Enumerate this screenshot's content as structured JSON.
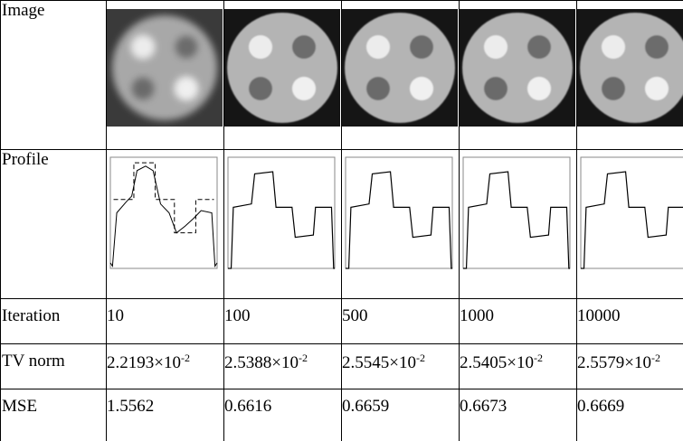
{
  "table": {
    "rows": [
      {
        "header": "Image"
      },
      {
        "header": "Profile"
      },
      {
        "header": "Iteration",
        "cells": [
          "10",
          "100",
          "500",
          "1000",
          "10000"
        ]
      },
      {
        "header": "TV norm",
        "cells": [
          {
            "mantissa": "2.2193×10",
            "exponent": "-2"
          },
          {
            "mantissa": "2.5388×10",
            "exponent": "-2"
          },
          {
            "mantissa": "2.5545×10",
            "exponent": "-2"
          },
          {
            "mantissa": "2.5405×10",
            "exponent": "-2"
          },
          {
            "mantissa": "2.5579×10",
            "exponent": "-2"
          }
        ]
      },
      {
        "header": "MSE",
        "cells": [
          "1.5562",
          "0.6616",
          "0.6659",
          "0.6673",
          "0.6669"
        ]
      }
    ]
  }
}
